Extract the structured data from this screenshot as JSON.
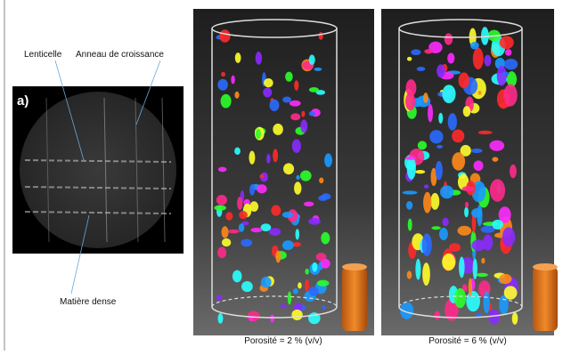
{
  "figure": {
    "panel_a": {
      "label": "a)",
      "annotations": [
        "Lenticelle",
        "Anneau de croissance",
        "Matière dense"
      ]
    },
    "panels": [
      {
        "caption": "Porosité = 2 % (v/v)"
      },
      {
        "caption": "Porosité = 6 % (v/v)"
      }
    ]
  }
}
